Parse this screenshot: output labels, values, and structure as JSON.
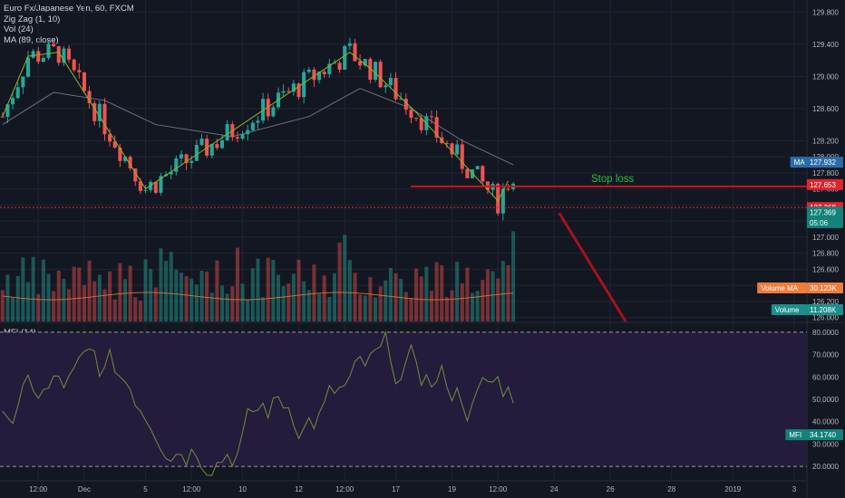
{
  "header": {
    "symbol_line": "Euro Fx/Japanese Yen, 60, FXCM",
    "zigzag_label": "Zig Zag (1, 10)",
    "vol_label": "Vol (24)",
    "ma_label": "MA (89, close)",
    "mfi_label": "MFI (14)"
  },
  "colors": {
    "background": "#131722",
    "mfi_background": "#251b3c",
    "up_candle": "#26a69a",
    "down_candle": "#ef5350",
    "zigzag": "#8bb428",
    "ma_line": "#6b7280",
    "mfi_line": "#6f8f3d",
    "stop_line": "#c8161d",
    "arrow": "#a3141a",
    "ma_tag": "#2b6ca8",
    "volume_ma_tag": "#f07c3a",
    "volume_tag": "#1d8f8a",
    "price_tag_green": "#13827a",
    "price_tag_red": "#e0232e"
  },
  "annotation": {
    "stop_loss_label": "Stop loss"
  },
  "chart_data": [
    {
      "type": "candlestick",
      "title": "Euro Fx/Japanese Yen, 60, FXCM",
      "ylim": [
        125.95,
        129.95
      ],
      "y_ticks": [
        "129.800",
        "129.400",
        "129.000",
        "128.600",
        "128.200",
        "128.000",
        "127.800",
        "127.600",
        "127.400",
        "127.200",
        "127.000",
        "126.800",
        "126.600",
        "126.400",
        "126.200",
        "126.000"
      ],
      "y_tick_values": [
        129.8,
        129.4,
        129.0,
        128.6,
        128.2,
        128.0,
        127.8,
        127.6,
        127.4,
        127.2,
        127.0,
        126.8,
        126.6,
        126.4,
        126.2,
        126.0
      ],
      "x_ticks": [
        "12:00",
        "Dec",
        "5",
        "12:00",
        "10",
        "12",
        "12:00",
        "17",
        "19",
        "12:00",
        "24",
        "26",
        "28",
        "2019",
        "3"
      ],
      "x_tick_index": [
        7,
        16,
        28,
        37,
        47,
        58,
        67,
        77,
        88,
        97,
        108,
        119,
        131,
        143,
        155
      ],
      "zigzag": {
        "index": [
          0,
          5,
          11,
          28,
          68,
          72,
          81,
          97,
          99
        ],
        "values": [
          128.5,
          129.25,
          129.3,
          127.6,
          129.3,
          129.1,
          128.55,
          127.45,
          127.7
        ]
      },
      "ma": {
        "index": [
          0,
          10,
          20,
          30,
          45,
          60,
          70,
          80,
          90,
          100
        ],
        "values": [
          128.4,
          128.8,
          128.7,
          128.4,
          128.25,
          128.5,
          128.85,
          128.6,
          128.2,
          127.9
        ]
      },
      "price_tags": [
        {
          "label": "MA",
          "value": "127.932",
          "y": 127.932
        },
        {
          "label": "",
          "value": "127.653",
          "y": 127.653
        },
        {
          "label": "",
          "value": "127.368",
          "y": 127.368
        },
        {
          "label": "",
          "value": "127.369",
          "y": 127.31
        },
        {
          "label": "",
          "value": "05:06",
          "y": 127.18
        }
      ],
      "stop_loss_level": 127.63,
      "current_level": 127.368,
      "projection_arrow": {
        "from_index": 109,
        "from_price": 127.3,
        "to_index": 122,
        "to_price": 125.95
      }
    },
    {
      "type": "bar",
      "title": "Vol (24)",
      "series": [
        {
          "name": "Volume MA",
          "value_label": "30.123K"
        },
        {
          "name": "Volume",
          "value_label": "11.208K"
        }
      ]
    },
    {
      "type": "line",
      "title": "MFI (14)",
      "ylim": [
        14,
        84
      ],
      "y_ticks": [
        "80.0000",
        "70.0000",
        "60.0000",
        "50.0000",
        "40.0000",
        "30.0000",
        "20.0000"
      ],
      "y_tick_values": [
        80,
        70,
        60,
        50,
        40,
        30,
        20
      ],
      "bands": [
        20,
        80
      ],
      "last_value": {
        "label": "MFI",
        "value": "34.1740"
      }
    }
  ]
}
